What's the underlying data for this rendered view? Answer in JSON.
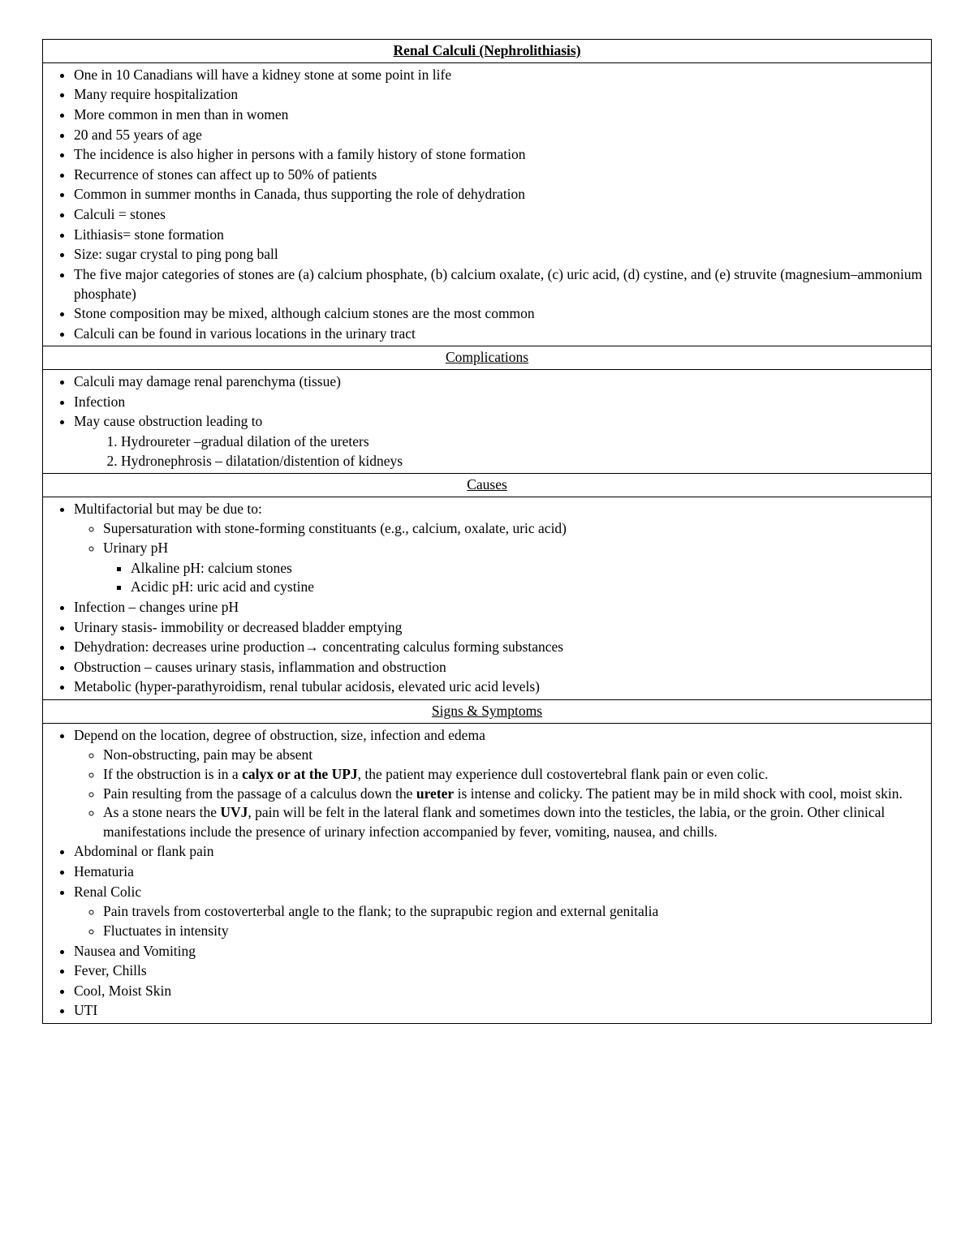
{
  "title": "Renal Calculi (Nephrolithiasis)",
  "intro": [
    "One in 10 Canadians will have a kidney stone at some point in life",
    "Many require hospitalization",
    "More common in men than in women",
    "20 and 55 years of age",
    "The incidence is also higher in persons with a family history of stone formation",
    "Recurrence of stones can affect up to 50% of patients",
    "Common in summer months in Canada, thus supporting the role of dehydration",
    "Calculi = stones",
    "Lithiasis= stone formation",
    "Size: sugar crystal to ping pong ball",
    "The five major categories of stones are (a) calcium phosphate, (b) calcium oxalate, (c) uric acid, (d) cystine, and (e) struvite (magnesium–ammonium phosphate)",
    "Stone composition may be mixed, although calcium stones are the most common",
    "Calculi can be found in various locations in the urinary tract"
  ],
  "complications": {
    "heading": "Complications",
    "items": {
      "b1": "Calculi may damage renal parenchyma (tissue)",
      "b2": "Infection",
      "b3": "May cause obstruction leading to",
      "n1": "Hydroureter –gradual dilation of the ureters",
      "n2": "Hydronephrosis – dilatation/distention of kidneys"
    }
  },
  "causes": {
    "heading": "Causes",
    "items": {
      "b1": "Multifactorial but may be due to:",
      "c1": "Supersaturation with stone-forming constituants (e.g., calcium, oxalate, uric acid)",
      "c2": "Urinary pH",
      "s1": "Alkaline pH: calcium stones",
      "s2": "Acidic pH: uric acid and cystine",
      "b2": "Infection – changes urine pH",
      "b3": "Urinary stasis- immobility or decreased bladder emptying",
      "b4_pre": "Dehydration: decreases urine production",
      "b4_arrow": "→",
      "b4_post": " concentrating calculus forming substances",
      "b5": "Obstruction – causes urinary stasis, inflammation and obstruction",
      "b6": "Metabolic (hyper-parathyroidism, renal tubular acidosis, elevated uric acid levels)"
    }
  },
  "signs": {
    "heading": "Signs & Symptoms",
    "items": {
      "b1": "Depend on the location, degree of obstruction, size, infection and edema",
      "c1": "Non-obstructing, pain may be absent",
      "c2_pre": "If the obstruction is in a ",
      "c2_bold": "calyx or at the UPJ",
      "c2_post": ", the patient may experience dull costovertebral flank pain or even colic.",
      "c3_pre": "Pain resulting from the passage of a calculus down the ",
      "c3_bold": "ureter",
      "c3_post": " is intense and colicky. The patient may be in mild shock with cool, moist skin.",
      "c4_pre": "As a stone nears the ",
      "c4_bold": "UVJ",
      "c4_post": ", pain will be felt in the lateral flank and sometimes down into the testicles, the labia, or the groin. Other clinical manifestations include the presence of urinary infection accompanied by fever, vomiting, nausea, and chills.",
      "b2": "Abdominal or flank pain",
      "b3": "Hematuria",
      "b4": "Renal Colic",
      "c5": "Pain travels from costoverterbal angle to the flank; to the suprapubic region and external genitalia",
      "c6": "Fluctuates in intensity",
      "b5": "Nausea and Vomiting",
      "b6": "Fever, Chills",
      "b7": "Cool, Moist Skin",
      "b8": "UTI"
    }
  }
}
